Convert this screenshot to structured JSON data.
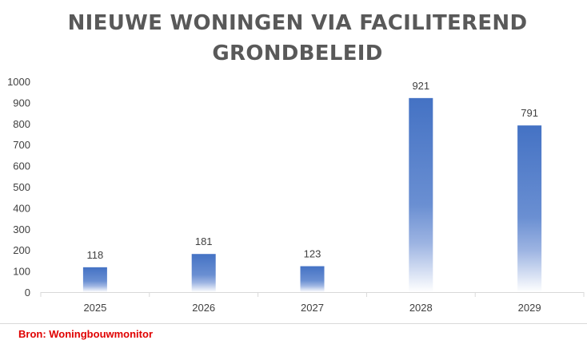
{
  "chart_data": {
    "type": "bar",
    "title": "NIEUWE WONINGEN VIA FACILITEREND GRONDBELEID",
    "title_lines": [
      "NIEUWE WONINGEN VIA FACILITEREND",
      "GRONDBELEID"
    ],
    "categories": [
      "2025",
      "2026",
      "2027",
      "2028",
      "2029"
    ],
    "values": [
      118,
      181,
      123,
      921,
      791
    ],
    "data_labels": [
      "118",
      "181",
      "123",
      "921",
      "791"
    ],
    "xlabel": "",
    "ylabel": "",
    "ylim": [
      0,
      1000
    ],
    "yticks": [
      0,
      100,
      200,
      300,
      400,
      500,
      600,
      700,
      800,
      900,
      1000
    ],
    "grid": false,
    "legend": "none",
    "bar_color": "#4472C4",
    "bar_fill": "gradient fading to white at the base"
  },
  "source": "Bron: Woningbouwmonitor",
  "colors": {
    "title": "#595959",
    "axis_text": "#404040",
    "source": "#e00000"
  }
}
